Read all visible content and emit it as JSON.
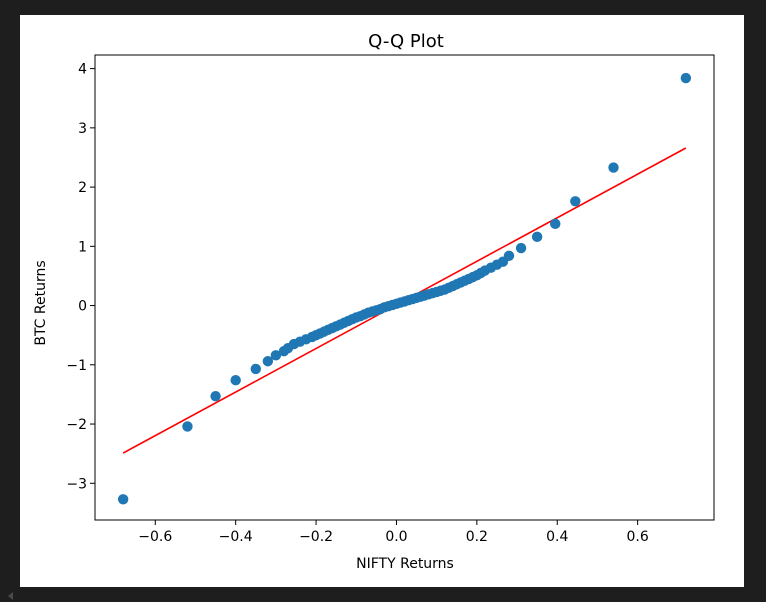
{
  "chart_data": {
    "type": "scatter",
    "title": "Q-Q Plot",
    "xlabel": "NIFTY Returns",
    "ylabel": "BTC Returns",
    "xlim": [
      -0.75,
      0.79
    ],
    "ylim": [
      -3.62,
      4.23
    ],
    "xticks": [
      -0.6,
      -0.4,
      -0.2,
      0.0,
      0.2,
      0.4,
      0.6
    ],
    "xtick_labels": [
      "−0.6",
      "−0.4",
      "−0.2",
      "0.0",
      "0.2",
      "0.4",
      "0.6"
    ],
    "yticks": [
      -3,
      -2,
      -1,
      0,
      1,
      2,
      3,
      4
    ],
    "ytick_labels": [
      "−3",
      "−2",
      "−1",
      "0",
      "1",
      "2",
      "3",
      "4"
    ],
    "grid": false,
    "marker_color": "#1f77b4",
    "line_color": "#ff0000",
    "fit_line": {
      "x": [
        -0.68,
        0.72
      ],
      "y": [
        -2.49,
        2.66
      ]
    },
    "points": {
      "x": [
        -0.68,
        -0.52,
        -0.45,
        -0.4,
        -0.35,
        -0.32,
        -0.3,
        -0.28,
        -0.27,
        -0.255,
        -0.24,
        -0.225,
        -0.21,
        -0.2,
        -0.19,
        -0.18,
        -0.17,
        -0.16,
        -0.15,
        -0.14,
        -0.13,
        -0.12,
        -0.11,
        -0.1,
        -0.09,
        -0.08,
        -0.07,
        -0.06,
        -0.05,
        -0.04,
        -0.03,
        -0.02,
        -0.01,
        0.0,
        0.01,
        0.02,
        0.03,
        0.04,
        0.05,
        0.06,
        0.07,
        0.08,
        0.09,
        0.1,
        0.11,
        0.12,
        0.13,
        0.14,
        0.15,
        0.16,
        0.17,
        0.18,
        0.19,
        0.2,
        0.21,
        0.22,
        0.235,
        0.25,
        0.265,
        0.28,
        0.31,
        0.35,
        0.395,
        0.445,
        0.54,
        0.72
      ],
      "y": [
        -3.27,
        -2.04,
        -1.53,
        -1.26,
        -1.07,
        -0.94,
        -0.84,
        -0.77,
        -0.72,
        -0.65,
        -0.61,
        -0.57,
        -0.53,
        -0.5,
        -0.47,
        -0.44,
        -0.41,
        -0.38,
        -0.35,
        -0.32,
        -0.29,
        -0.26,
        -0.23,
        -0.2,
        -0.18,
        -0.15,
        -0.12,
        -0.1,
        -0.08,
        -0.06,
        -0.03,
        -0.01,
        0.01,
        0.03,
        0.05,
        0.07,
        0.09,
        0.11,
        0.13,
        0.15,
        0.17,
        0.19,
        0.21,
        0.23,
        0.25,
        0.27,
        0.3,
        0.33,
        0.36,
        0.39,
        0.42,
        0.45,
        0.48,
        0.51,
        0.55,
        0.59,
        0.64,
        0.69,
        0.74,
        0.84,
        0.97,
        1.16,
        1.38,
        1.76,
        2.33,
        3.84
      ]
    }
  }
}
